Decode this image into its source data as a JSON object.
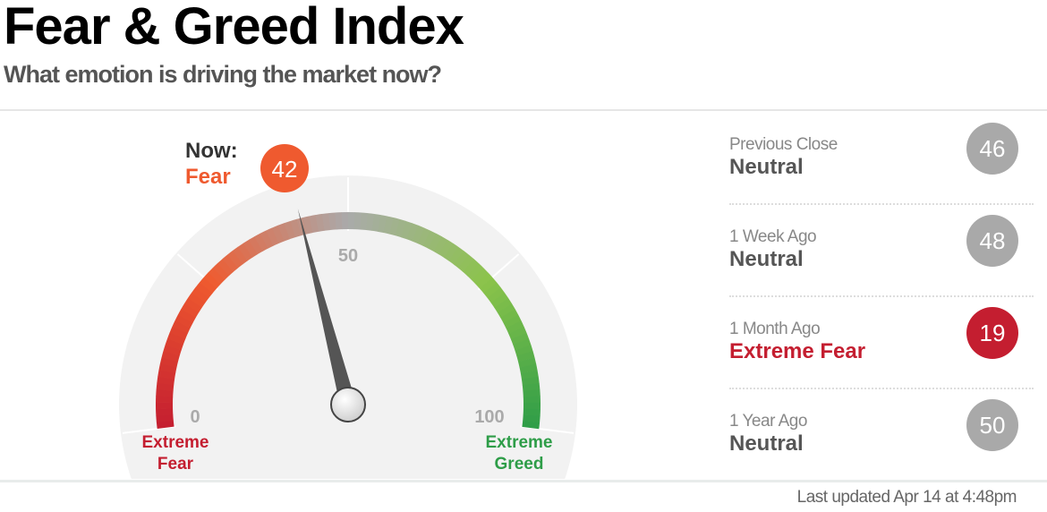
{
  "header": {
    "title": "Fear & Greed Index",
    "subtitle": "What emotion is driving the market now?"
  },
  "gauge": {
    "value": 42,
    "now_label": "Now:",
    "now_status": "Fear",
    "value_text": "42",
    "min": 0,
    "max": 100,
    "tick_labels": {
      "min": "0",
      "mid": "50",
      "max": "100"
    },
    "left_label": [
      "Extreme",
      "Fear"
    ],
    "right_label": [
      "Extreme",
      "Greed"
    ],
    "colors": {
      "extreme_fear": "#c41e30",
      "fear": "#ef5a2f",
      "neutral": "#aaaaaa",
      "greed": "#8bc34a",
      "extreme_greed": "#2e9d48",
      "bubble": "#ef5a2f",
      "needle": "#555555"
    }
  },
  "history": [
    {
      "label": "Previous Close",
      "status": "Neutral",
      "value": "46",
      "color": "#a9a9a9",
      "status_color": "#555555"
    },
    {
      "label": "1 Week Ago",
      "status": "Neutral",
      "value": "48",
      "color": "#a9a9a9",
      "status_color": "#555555"
    },
    {
      "label": "1 Month Ago",
      "status": "Extreme Fear",
      "value": "19",
      "color": "#c41e30",
      "status_color": "#c41e30"
    },
    {
      "label": "1 Year Ago",
      "status": "Neutral",
      "value": "50",
      "color": "#a9a9a9",
      "status_color": "#555555"
    }
  ],
  "footer": {
    "last_updated": "Last updated Apr 14 at 4:48pm"
  }
}
